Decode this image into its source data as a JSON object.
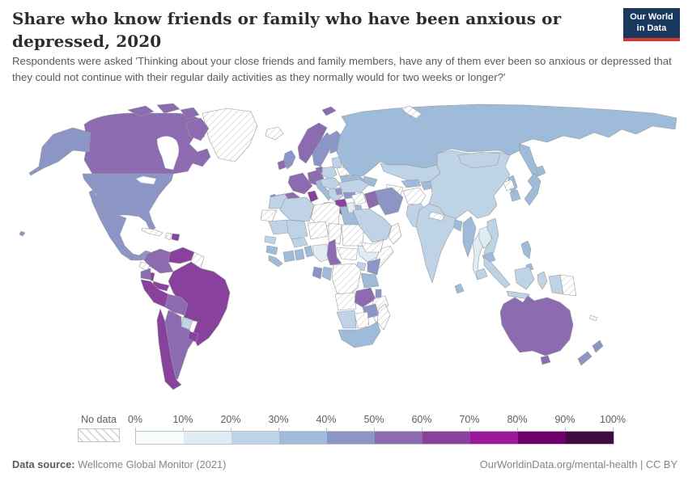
{
  "header": {
    "title": "Share who know friends or family who have been anxious or depressed, 2020",
    "logo": {
      "line1": "Our World",
      "line2": "in Data",
      "bg_color": "#18385e",
      "accent_color": "#d8352f"
    }
  },
  "subtitle": "Respondents were asked 'Thinking about your close friends and family members, have any of them ever been so anxious or depressed that they could not continue with their regular daily activities as they normally would for two weeks or longer?'",
  "legend": {
    "no_data_label": "No data",
    "tick_labels": [
      "0%",
      "10%",
      "20%",
      "30%",
      "40%",
      "50%",
      "60%",
      "70%",
      "80%",
      "90%",
      "100%"
    ],
    "bins": [
      "0-10%",
      "10-20%",
      "20-30%",
      "30-40%",
      "40-50%",
      "50-60%",
      "60-70%",
      "70-80%",
      "80-90%",
      "90-100%"
    ],
    "colors": [
      "#f7fcfd",
      "#e0ecf4",
      "#bfd3e6",
      "#9ebcda",
      "#8c96c6",
      "#8c6bb1",
      "#88419d",
      "#9c179c",
      "#6d016b",
      "#3f0b40"
    ],
    "no_data_pattern": "diagonal-hatch"
  },
  "footer": {
    "source_label": "Data source:",
    "source_value": "Wellcome Global Monitor (2021)",
    "right_text": "OurWorldinData.org/mental-health | CC BY"
  },
  "chart_data": {
    "type": "choropleth",
    "title": "Share who know friends or family who have been anxious or depressed",
    "year": "2020",
    "unit": "% of respondents",
    "legend_bins": [
      "0-10%",
      "10-20%",
      "20-30%",
      "30-40%",
      "40-50%",
      "50-60%",
      "60-70%",
      "70-80%",
      "80-90%",
      "90-100%"
    ],
    "no_data_value": "No data",
    "countries": {
      "canada": "50-60%",
      "usa": "40-50%",
      "hawaii": "40-50%",
      "mexico": "40-50%",
      "greenland": "No data",
      "iceland": "No data",
      "guatemala-honduras": "No data",
      "nicaragua": "60-70%",
      "costa-rica-panama": "60-70%",
      "cuba": "No data",
      "haiti": "No data",
      "dominican-republic": "60-70%",
      "colombia": "50-60%",
      "venezuela": "60-70%",
      "guyanas": "No data",
      "ecuador": "50-60%",
      "peru": "60-70%",
      "brazil": "60-70%",
      "bolivia": "50-60%",
      "paraguay": "20-30%",
      "chile": "60-70%",
      "argentina": "50-60%",
      "uruguay": "60-70%",
      "norway": "50-60%",
      "svalbard": "50-60%",
      "sweden": "40-50%",
      "finland": "40-50%",
      "denmark": "50-60%",
      "uk": "40-50%",
      "ireland": "50-60%",
      "germany": "50-60%",
      "france": "50-60%",
      "spain": "50-60%",
      "portugal": "40-50%",
      "italy": "30-40%",
      "poland": "20-30%",
      "baltics": "20-30%",
      "belarus": "No data",
      "ukraine": "30-40%",
      "central-europe": "20-30%",
      "balkans": "20-30%",
      "serbia": "40-50%",
      "romania": "20-30%",
      "bulgaria": "40-50%",
      "greece": "60-70%",
      "russia": "30-40%",
      "novaya-zemlya": "No data",
      "kazakhstan": "20-30%",
      "uzbekistan": "30-40%",
      "turkmenistan": "No data",
      "kyrgyz-tajik": "30-40%",
      "caucasus": "30-40%",
      "turkey": "20-30%",
      "syria": "No data",
      "jordan-israel": "10-20%",
      "iraq": "50-60%",
      "iran": "40-50%",
      "saudi-arabia": "20-30%",
      "yemen": "No data",
      "oman": "No data",
      "afghanistan": "No data",
      "pakistan": "20-30%",
      "india": "20-30%",
      "nepal": "No data",
      "bangladesh": "30-40%",
      "sri-lanka": "30-40%",
      "china": "20-30%",
      "mongolia": "20-30%",
      "north-korea": "No data",
      "south-korea": "30-40%",
      "japan": "30-40%",
      "myanmar": "30-40%",
      "thailand": "10-20%",
      "laos": "10-20%",
      "vietnam": "20-30%",
      "cambodia": "30-40%",
      "malaysia": "20-30%",
      "philippines": "30-40%",
      "indonesia": "20-30%",
      "papua-new-guinea": "No data",
      "timor": "No data",
      "australia": "50-60%",
      "tasmania": "50-60%",
      "new-zealand": "40-50%",
      "new-caledonia": "No data",
      "morocco": "20-30%",
      "western-sahara": "No data",
      "algeria": "20-30%",
      "tunisia": "60-70%",
      "libya": "No data",
      "egypt": "30-40%",
      "mauritania": "20-30%",
      "mali": "20-30%",
      "niger": "No data",
      "chad": "No data",
      "sudan": "No data",
      "senegal": "20-30%",
      "guinea": "30-40%",
      "sierra-leone-liberia": "30-40%",
      "ivory-coast": "30-40%",
      "ghana": "30-40%",
      "togo-benin": "30-40%",
      "burkina-faso": "20-30%",
      "nigeria": "10-20%",
      "cameroon": "50-60%",
      "central-african-republic": "No data",
      "ethiopia": "10-20%",
      "somalia": "No data",
      "uganda": "20-30%",
      "kenya": "40-50%",
      "tanzania": "30-40%",
      "gabon": "40-50%",
      "congo": "30-40%",
      "drc": "No data",
      "angola": "No data",
      "zambia": "50-60%",
      "malawi": "40-50%",
      "mozambique": "No data",
      "zimbabwe": "40-50%",
      "namibia": "20-30%",
      "botswana": "No data",
      "south-africa": "30-40%",
      "madagascar": "No data"
    }
  }
}
